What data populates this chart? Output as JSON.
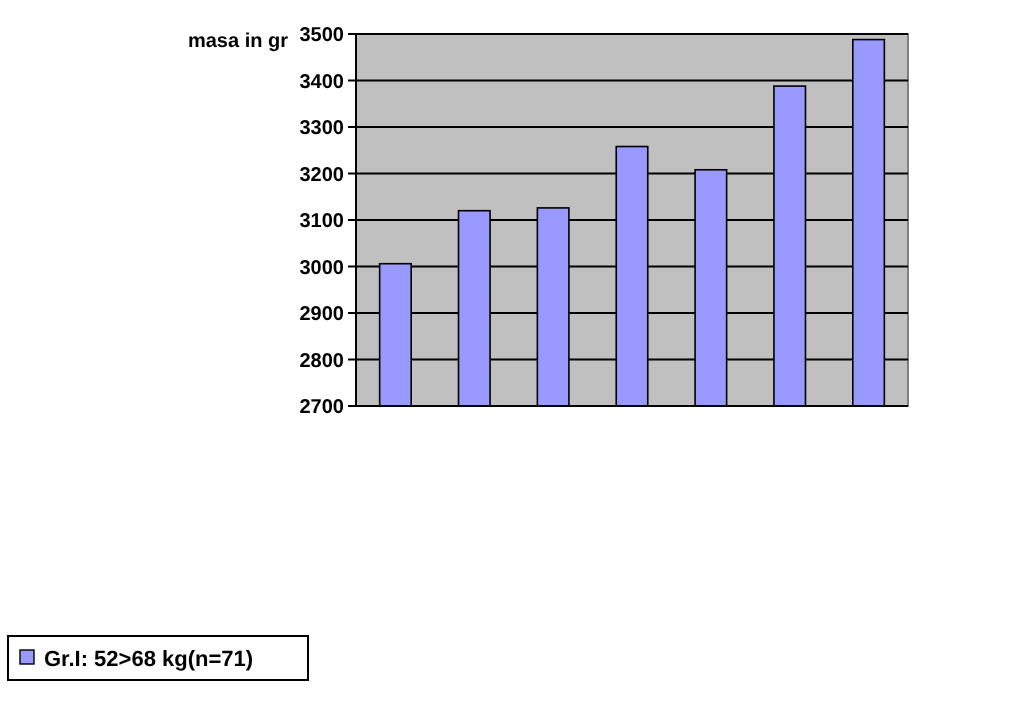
{
  "chart_data": {
    "type": "bar",
    "ylabel": "masa in gr",
    "categories": [
      null,
      null,
      null,
      null,
      null,
      null,
      null
    ],
    "series": [
      {
        "name": "Gr.I: 52>68 kg(n=71)",
        "color": "#9999ff",
        "values": [
          3006,
          3120,
          3126,
          3258,
          3208,
          3388,
          3488
        ]
      }
    ],
    "ylim": [
      2700,
      3500
    ],
    "yticks": [
      2700,
      2800,
      2900,
      3000,
      3100,
      3200,
      3300,
      3400,
      3500
    ],
    "grid": "y",
    "legend": "bottom left"
  }
}
